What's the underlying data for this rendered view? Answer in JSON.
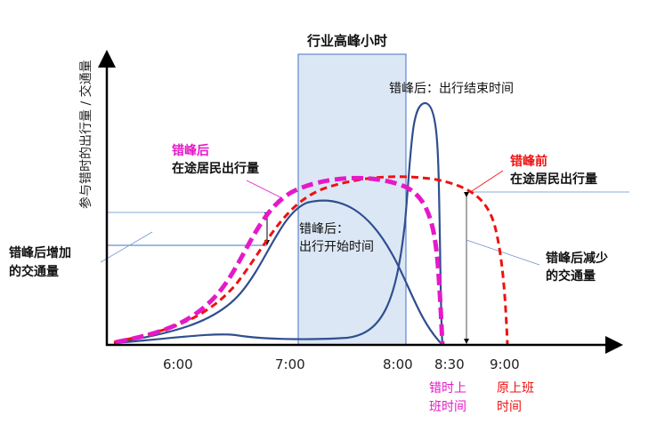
{
  "title": "行业高峰小时",
  "y_axis_label": "参与错时的出行量 / 交通量",
  "x_ticks": [
    "6:00",
    "7:00",
    "8:00",
    "8:30",
    "9:00"
  ],
  "labels": {
    "after_end": "错峰后：出行结束时间",
    "after_start_1": "错峰后：",
    "after_start_2": "出行开始时间",
    "after_volume_1": "错峰后",
    "after_volume_2": "在途居民出行量",
    "before_volume_1": "错峰前",
    "before_volume_2": "在途居民出行量",
    "increase_1": "错峰后增加",
    "increase_2": "的交通量",
    "decrease_1": "错峰后减少",
    "decrease_2": "的交通量",
    "staggered_time_1": "错时上",
    "staggered_time_2": "班时间",
    "original_time_1": "原上班",
    "original_time_2": "时间"
  },
  "colors": {
    "after_curve": "#e619c8",
    "before_curve": "#f01010",
    "time_curves": "#2f4f8f",
    "peak_hour_band": "#dce7f5"
  }
}
